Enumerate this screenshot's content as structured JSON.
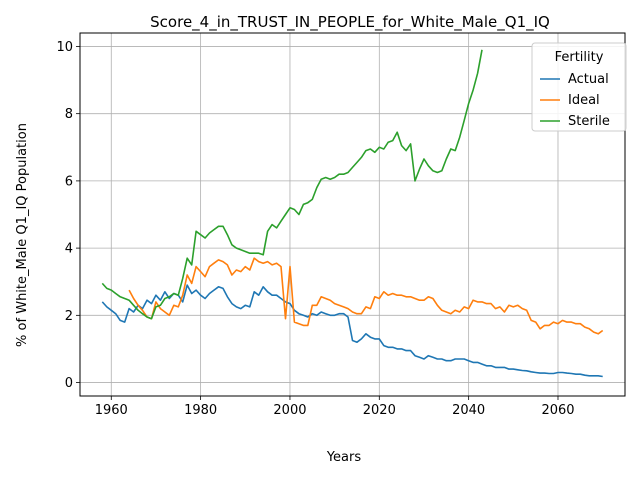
{
  "chart_data": {
    "type": "line",
    "title": "Score_4_in_TRUST_IN_PEOPLE_for_White_Male_Q1_IQ",
    "xlabel": "Years",
    "ylabel": "% of White_Male Q1_IQ Population",
    "xlim": [
      1953,
      2075
    ],
    "ylim": [
      -0.4,
      10.4
    ],
    "xticks": [
      1960,
      1980,
      2000,
      2020,
      2040,
      2060
    ],
    "yticks": [
      0,
      2,
      4,
      6,
      8,
      10
    ],
    "grid": true,
    "legend": {
      "title": "Fertility",
      "placement": "top-right"
    },
    "series": [
      {
        "name": "Actual",
        "color": "#1f77b4",
        "x": [
          1958,
          1959,
          1960,
          1961,
          1962,
          1963,
          1964,
          1965,
          1966,
          1967,
          1968,
          1969,
          1970,
          1971,
          1972,
          1973,
          1974,
          1975,
          1976,
          1977,
          1978,
          1979,
          1980,
          1981,
          1982,
          1983,
          1984,
          1985,
          1986,
          1987,
          1988,
          1989,
          1990,
          1991,
          1992,
          1993,
          1994,
          1995,
          1996,
          1997,
          1998,
          1999,
          2000,
          2001,
          2002,
          2003,
          2004,
          2005,
          2006,
          2007,
          2008,
          2009,
          2010,
          2011,
          2012,
          2013,
          2014,
          2015,
          2016,
          2017,
          2018,
          2019,
          2020,
          2021,
          2022,
          2023,
          2024,
          2025,
          2026,
          2027,
          2028,
          2029,
          2030,
          2031,
          2032,
          2033,
          2034,
          2035,
          2036,
          2037,
          2038,
          2039,
          2040,
          2041,
          2042,
          2043,
          2044,
          2045,
          2046,
          2047,
          2048,
          2049,
          2050,
          2051,
          2052,
          2053,
          2054,
          2055,
          2056,
          2057,
          2058,
          2059,
          2060,
          2061,
          2062,
          2063,
          2064,
          2065,
          2066,
          2067,
          2068,
          2069,
          2070
        ],
        "y": [
          2.4,
          2.25,
          2.15,
          2.05,
          1.85,
          1.8,
          2.2,
          2.1,
          2.3,
          2.2,
          2.45,
          2.35,
          2.6,
          2.45,
          2.7,
          2.5,
          2.65,
          2.6,
          2.4,
          2.9,
          2.65,
          2.75,
          2.6,
          2.5,
          2.65,
          2.75,
          2.85,
          2.8,
          2.55,
          2.35,
          2.25,
          2.2,
          2.3,
          2.25,
          2.7,
          2.6,
          2.85,
          2.7,
          2.6,
          2.6,
          2.5,
          2.4,
          2.35,
          2.15,
          2.05,
          2.0,
          1.95,
          2.05,
          2.0,
          2.1,
          2.05,
          2.0,
          2.0,
          2.05,
          2.05,
          1.95,
          1.25,
          1.2,
          1.3,
          1.45,
          1.35,
          1.3,
          1.3,
          1.1,
          1.05,
          1.05,
          1.0,
          1.0,
          0.95,
          0.95,
          0.8,
          0.75,
          0.7,
          0.8,
          0.75,
          0.7,
          0.7,
          0.65,
          0.65,
          0.7,
          0.7,
          0.7,
          0.65,
          0.6,
          0.6,
          0.55,
          0.5,
          0.5,
          0.45,
          0.45,
          0.45,
          0.4,
          0.4,
          0.38,
          0.36,
          0.35,
          0.32,
          0.3,
          0.28,
          0.28,
          0.27,
          0.27,
          0.3,
          0.3,
          0.28,
          0.27,
          0.25,
          0.25,
          0.22,
          0.2,
          0.2,
          0.2,
          0.18
        ]
      },
      {
        "name": "Ideal",
        "color": "#ff7f0e",
        "x": [
          1964,
          1965,
          1966,
          1967,
          1968,
          1969,
          1970,
          1971,
          1972,
          1973,
          1974,
          1975,
          1976,
          1977,
          1978,
          1979,
          1980,
          1981,
          1982,
          1983,
          1984,
          1985,
          1986,
          1987,
          1988,
          1989,
          1990,
          1991,
          1992,
          1993,
          1994,
          1995,
          1996,
          1997,
          1998,
          1999,
          2000,
          2001,
          2002,
          2003,
          2004,
          2005,
          2006,
          2007,
          2008,
          2009,
          2010,
          2011,
          2012,
          2013,
          2014,
          2015,
          2016,
          2017,
          2018,
          2019,
          2020,
          2021,
          2022,
          2023,
          2024,
          2025,
          2026,
          2027,
          2028,
          2029,
          2030,
          2031,
          2032,
          2033,
          2034,
          2035,
          2036,
          2037,
          2038,
          2039,
          2040,
          2041,
          2042,
          2043,
          2044,
          2045,
          2046,
          2047,
          2048,
          2049,
          2050,
          2051,
          2052,
          2053,
          2054,
          2055,
          2056,
          2057,
          2058,
          2059,
          2060,
          2061,
          2062,
          2063,
          2064,
          2065,
          2066,
          2067,
          2068,
          2069,
          2070
        ],
        "y": [
          2.75,
          2.5,
          2.3,
          2.15,
          1.95,
          1.9,
          2.4,
          2.2,
          2.1,
          2.0,
          2.3,
          2.25,
          2.6,
          3.2,
          2.95,
          3.45,
          3.3,
          3.15,
          3.45,
          3.55,
          3.65,
          3.6,
          3.5,
          3.2,
          3.35,
          3.3,
          3.45,
          3.35,
          3.7,
          3.6,
          3.55,
          3.6,
          3.5,
          3.55,
          3.45,
          1.9,
          3.45,
          1.8,
          1.75,
          1.7,
          1.7,
          2.3,
          2.3,
          2.55,
          2.5,
          2.45,
          2.35,
          2.3,
          2.25,
          2.2,
          2.1,
          2.05,
          2.05,
          2.25,
          2.2,
          2.55,
          2.5,
          2.7,
          2.6,
          2.65,
          2.6,
          2.6,
          2.55,
          2.55,
          2.5,
          2.45,
          2.45,
          2.55,
          2.5,
          2.3,
          2.15,
          2.1,
          2.05,
          2.15,
          2.1,
          2.25,
          2.2,
          2.45,
          2.4,
          2.4,
          2.35,
          2.35,
          2.2,
          2.25,
          2.1,
          2.3,
          2.25,
          2.3,
          2.2,
          2.15,
          1.85,
          1.8,
          1.6,
          1.7,
          1.7,
          1.8,
          1.75,
          1.85,
          1.8,
          1.8,
          1.75,
          1.75,
          1.65,
          1.6,
          1.5,
          1.45,
          1.55
        ]
      },
      {
        "name": "Sterile",
        "color": "#2ca02c",
        "x": [
          1958,
          1959,
          1960,
          1961,
          1962,
          1963,
          1964,
          1965,
          1966,
          1967,
          1968,
          1969,
          1970,
          1971,
          1972,
          1973,
          1974,
          1975,
          1976,
          1977,
          1978,
          1979,
          1980,
          1981,
          1982,
          1983,
          1984,
          1985,
          1986,
          1987,
          1988,
          1989,
          1990,
          1991,
          1992,
          1993,
          1994,
          1995,
          1996,
          1997,
          1998,
          1999,
          2000,
          2001,
          2002,
          2003,
          2004,
          2005,
          2006,
          2007,
          2008,
          2009,
          2010,
          2011,
          2012,
          2013,
          2014,
          2015,
          2016,
          2017,
          2018,
          2019,
          2020,
          2021,
          2022,
          2023,
          2024,
          2025,
          2026,
          2027,
          2028,
          2029,
          2030,
          2031,
          2032,
          2033,
          2034,
          2035,
          2036,
          2037,
          2038,
          2039,
          2040,
          2041,
          2042,
          2043
        ],
        "y": [
          2.95,
          2.8,
          2.75,
          2.65,
          2.55,
          2.5,
          2.45,
          2.3,
          2.15,
          2.05,
          1.95,
          1.9,
          2.25,
          2.3,
          2.5,
          2.55,
          2.65,
          2.6,
          3.1,
          3.7,
          3.5,
          4.5,
          4.4,
          4.3,
          4.45,
          4.55,
          4.65,
          4.65,
          4.4,
          4.1,
          4.0,
          3.95,
          3.9,
          3.85,
          3.85,
          3.85,
          3.8,
          4.5,
          4.7,
          4.6,
          4.8,
          5.0,
          5.2,
          5.15,
          5.0,
          5.3,
          5.35,
          5.45,
          5.8,
          6.05,
          6.1,
          6.05,
          6.1,
          6.2,
          6.2,
          6.25,
          6.4,
          6.55,
          6.7,
          6.9,
          6.95,
          6.85,
          7.0,
          6.95,
          7.15,
          7.2,
          7.45,
          7.05,
          6.9,
          7.1,
          6.0,
          6.35,
          6.65,
          6.45,
          6.3,
          6.25,
          6.3,
          6.65,
          6.95,
          6.9,
          7.3,
          7.8,
          8.3,
          8.7,
          9.2,
          9.9
        ]
      }
    ]
  }
}
